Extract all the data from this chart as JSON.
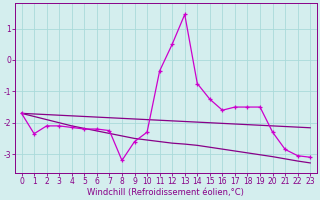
{
  "xlabel": "Windchill (Refroidissement éolien,°C)",
  "x": [
    0,
    1,
    2,
    3,
    4,
    5,
    6,
    7,
    8,
    9,
    10,
    11,
    12,
    13,
    14,
    15,
    16,
    17,
    18,
    19,
    20,
    21,
    22,
    23
  ],
  "line_main": [
    -1.7,
    -2.35,
    -2.1,
    -2.1,
    -2.15,
    -2.2,
    -2.2,
    -2.25,
    -3.2,
    -2.6,
    -2.3,
    -0.35,
    0.5,
    1.45,
    -0.75,
    -1.25,
    -1.6,
    -1.5,
    -1.5,
    -1.5,
    -2.3,
    -2.85,
    -3.05,
    -3.1
  ],
  "line_trend1": [
    -1.7,
    -1.72,
    -1.74,
    -1.76,
    -1.78,
    -1.8,
    -1.82,
    -1.84,
    -1.86,
    -1.88,
    -1.9,
    -1.92,
    -1.94,
    -1.96,
    -1.98,
    -2.0,
    -2.02,
    -2.04,
    -2.06,
    -2.08,
    -2.1,
    -2.12,
    -2.14,
    -2.16
  ],
  "line_trend2": [
    -1.7,
    -1.8,
    -1.9,
    -2.0,
    -2.1,
    -2.18,
    -2.26,
    -2.34,
    -2.42,
    -2.5,
    -2.55,
    -2.6,
    -2.65,
    -2.68,
    -2.72,
    -2.78,
    -2.84,
    -2.9,
    -2.96,
    -3.02,
    -3.08,
    -3.15,
    -3.22,
    -3.28
  ],
  "color_main": "#cc00cc",
  "color_trend": "#880088",
  "background": "#d4eeee",
  "grid_color": "#aadada",
  "ylim": [
    -3.6,
    1.8
  ],
  "yticks": [
    -3,
    -2,
    -1,
    0,
    1
  ],
  "xlim": [
    -0.5,
    23.5
  ],
  "tick_fontsize": 5.5,
  "label_fontsize": 6.0
}
